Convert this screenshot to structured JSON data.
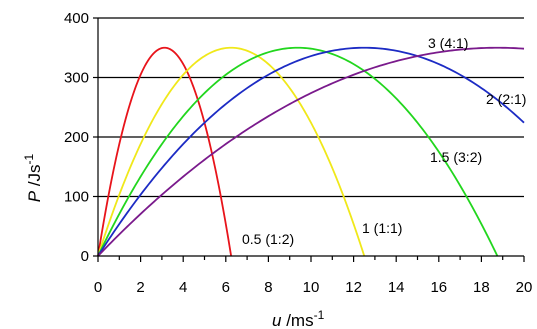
{
  "chart_data": {
    "type": "line",
    "xlabel": {
      "symbol": "u",
      "unit": " /ms",
      "exp": "-1"
    },
    "ylabel": {
      "symbol": "P",
      "unit": " /Js",
      "exp": "-1"
    },
    "xlim": [
      0,
      20
    ],
    "ylim": [
      0,
      400
    ],
    "xticks": [
      "0",
      "2",
      "4",
      "6",
      "8",
      "10",
      "12",
      "14",
      "16",
      "18",
      "20"
    ],
    "yticks": [
      "0",
      "100",
      "200",
      "300",
      "400"
    ],
    "grid": {
      "horizontal": true,
      "vertical": false
    },
    "series": [
      {
        "name": "0.5 (1:2)",
        "color": "#e8141b",
        "u_max": 6.25,
        "p_peak": 350
      },
      {
        "name": "1 (1:1)",
        "color": "#f0e81a",
        "u_max": 12.5,
        "p_peak": 350
      },
      {
        "name": "1.5 (3:2)",
        "color": "#22d61e",
        "u_max": 18.75,
        "p_peak": 350
      },
      {
        "name": "2 (2:1)",
        "color": "#1c2bc4",
        "u_max": 25,
        "p_peak": 350
      },
      {
        "name": "3 (4:1)",
        "color": "#7a1a8c",
        "u_max": 37.5,
        "p_peak": 350
      }
    ]
  }
}
